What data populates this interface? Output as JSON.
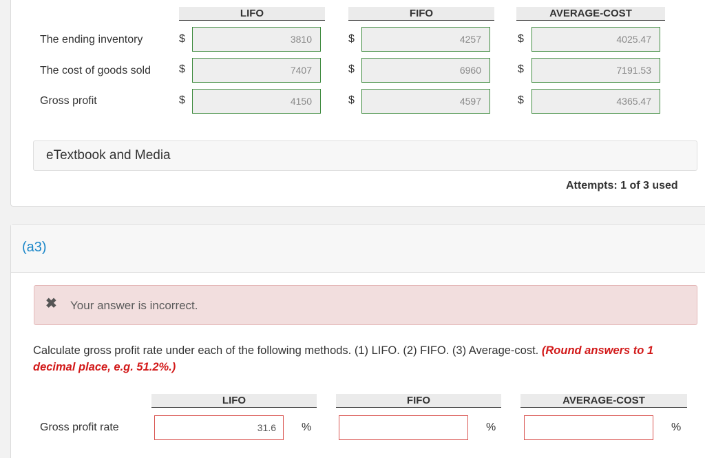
{
  "part_a2": {
    "columns": [
      "LIFO",
      "FIFO",
      "AVERAGE-COST"
    ],
    "rows": [
      {
        "label": "The ending inventory",
        "currency": "$",
        "values": [
          "3810",
          "4257",
          "4025.47"
        ]
      },
      {
        "label": "The cost of goods sold",
        "currency": "$",
        "values": [
          "7407",
          "6960",
          "7191.53"
        ]
      },
      {
        "label": "Gross profit",
        "currency": "$",
        "values": [
          "4150",
          "4597",
          "4365.47"
        ]
      }
    ],
    "media_label": "eTextbook and Media",
    "attempts": "Attempts: 1 of 3 used"
  },
  "part_a3": {
    "label": "(a3)",
    "error_message": "Your answer is incorrect.",
    "question": "Calculate gross profit rate under each of the following methods. (1) LIFO. (2) FIFO. (3) Average-cost.",
    "hint": "(Round answers to 1 decimal place, e.g. 51.2%.)",
    "columns": [
      "LIFO",
      "FIFO",
      "AVERAGE-COST"
    ],
    "row_label": "Gross profit rate",
    "unit": "%",
    "values": [
      "31.6",
      "",
      ""
    ]
  },
  "colors": {
    "accent_blue": "#1b87c9",
    "error_red": "#d21919",
    "error_bg": "#f2dede",
    "correct_border": "#3d8a3d"
  }
}
